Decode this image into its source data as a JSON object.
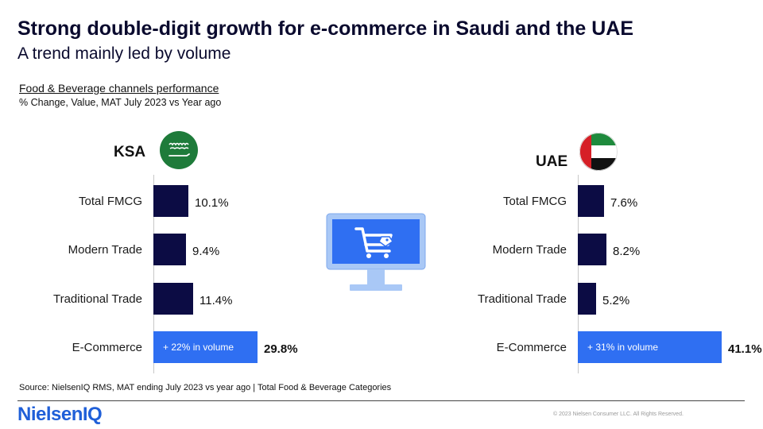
{
  "header": {
    "title": "Strong double-digit growth for e-commerce in Saudi and the UAE",
    "subtitle": "A trend mainly led by volume"
  },
  "description": {
    "title": "Food & Beverage channels performance",
    "subtitle": "% Change, Value, MAT July 2023 vs Year ago"
  },
  "chart_data": [
    {
      "type": "bar",
      "orientation": "horizontal",
      "country": "KSA",
      "flag_icon": "saudi-flag-icon",
      "categories": [
        "Total FMCG",
        "Modern Trade",
        "Traditional Trade",
        "E-Commerce"
      ],
      "values": [
        10.1,
        9.4,
        11.4,
        29.8
      ],
      "value_labels": [
        "10.1%",
        "9.4%",
        "11.4%",
        "29.8%"
      ],
      "highlight_index": 3,
      "highlight_note": "+ 22% in volume",
      "xlim": [
        0,
        60
      ],
      "bar_color": "#0c0c44",
      "highlight_color": "#2f6ff2"
    },
    {
      "type": "bar",
      "orientation": "horizontal",
      "country": "UAE",
      "flag_icon": "uae-flag-icon",
      "categories": [
        "Total FMCG",
        "Modern Trade",
        "Traditional Trade",
        "E-Commerce"
      ],
      "values": [
        7.6,
        8.2,
        5.2,
        41.1
      ],
      "value_labels": [
        "7.6%",
        "8.2%",
        "5.2%",
        "41.1%"
      ],
      "highlight_index": 3,
      "highlight_note": "+ 31% in volume",
      "xlim": [
        0,
        60
      ],
      "bar_color": "#0c0c44",
      "highlight_color": "#2f6ff2"
    }
  ],
  "icons": {
    "center": "ecommerce-monitor-cart-icon"
  },
  "footer": {
    "source": "Source: NielsenIQ RMS,  MAT ending July 2023 vs year ago  | Total Food & Beverage Categories",
    "logo": "NielsenIQ",
    "copyright": "© 2023 Nielsen Consumer LLC. All Rights Reserved."
  }
}
